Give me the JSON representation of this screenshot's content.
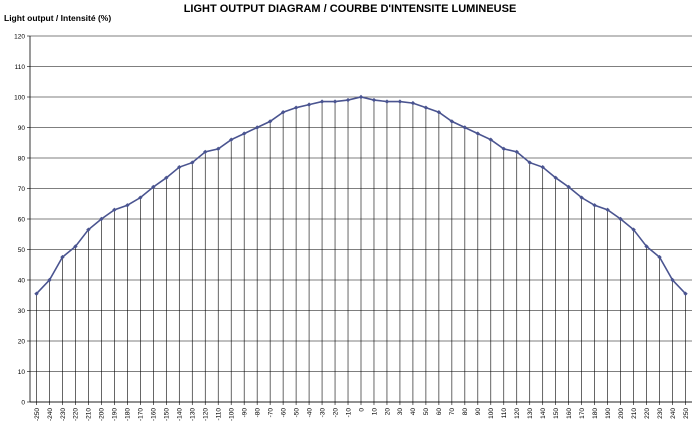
{
  "chart_data": {
    "type": "line",
    "title": "LIGHT OUTPUT DIAGRAM / COURBE D'INTENSITE LUMINEUSE",
    "ylabel": "Light output / Intensité (%)",
    "xlabel": "",
    "ylim": [
      0,
      120
    ],
    "yticks": [
      0,
      10,
      20,
      30,
      40,
      50,
      60,
      70,
      80,
      90,
      100,
      110,
      120
    ],
    "grid": "horizontal",
    "drop_lines": true,
    "legend": "none",
    "colors": {
      "line": "#4a5490",
      "marker": "#4a5490",
      "grid": "#000000",
      "dropline": "#000000"
    },
    "x": [
      -250,
      -240,
      -230,
      -220,
      -210,
      -200,
      -190,
      -180,
      -170,
      -160,
      -150,
      -140,
      -130,
      -120,
      -110,
      -100,
      -90,
      -80,
      -70,
      -60,
      -50,
      -40,
      -30,
      -20,
      -10,
      0,
      10,
      20,
      30,
      40,
      50,
      60,
      70,
      80,
      90,
      100,
      110,
      120,
      130,
      140,
      150,
      160,
      170,
      180,
      190,
      200,
      210,
      220,
      230,
      240,
      250
    ],
    "series": [
      {
        "values": [
          35.5,
          40,
          47.5,
          51,
          56.5,
          60,
          63,
          64.5,
          67,
          70.5,
          73.5,
          77,
          78.5,
          82,
          83,
          86,
          88,
          90,
          92,
          95,
          96.5,
          97.5,
          98.5,
          98.5,
          99,
          100,
          99,
          98.5,
          98.5,
          98,
          96.5,
          95,
          92,
          90,
          88,
          86,
          83,
          82,
          78.5,
          77,
          73.5,
          70.5,
          67,
          64.5,
          63,
          60,
          56.5,
          51,
          47.5,
          40,
          35.5
        ]
      }
    ]
  }
}
